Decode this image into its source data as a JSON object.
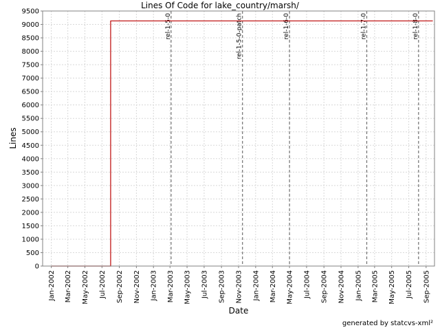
{
  "chart_data": {
    "type": "line",
    "title": "Lines Of Code for lake_country/marsh/",
    "xlabel": "Date",
    "ylabel": "Lines",
    "ylim": [
      0,
      9500
    ],
    "xlim": [
      "2001-12-01",
      "2005-10-01"
    ],
    "grid": true,
    "x_ticks": [
      "Jan-2002",
      "Mar-2002",
      "May-2002",
      "Jul-2002",
      "Sep-2002",
      "Nov-2002",
      "Jan-2003",
      "Mar-2003",
      "May-2003",
      "Jul-2003",
      "Sep-2003",
      "Nov-2003",
      "Jan-2004",
      "Mar-2004",
      "May-2004",
      "Jul-2004",
      "Sep-2004",
      "Nov-2004",
      "Jan-2005",
      "Mar-2005",
      "May-2005",
      "Jul-2005",
      "Sep-2005"
    ],
    "y_ticks": [
      0,
      500,
      1000,
      1500,
      2000,
      2500,
      3000,
      3500,
      4000,
      4500,
      5000,
      5500,
      6000,
      6500,
      7000,
      7500,
      8000,
      8500,
      9000,
      9500
    ],
    "series": [
      {
        "color": "#bb0000",
        "points": [
          {
            "x": "2002-01-01",
            "y": 0
          },
          {
            "x": "2002-08-01",
            "y": 0
          },
          {
            "x": "2002-08-01",
            "y": 9130
          },
          {
            "x": "2005-09-25",
            "y": 9130
          }
        ]
      }
    ],
    "markers": [
      {
        "label": "rel-1-5-0",
        "x": "2003-03-05"
      },
      {
        "label": "rel-1-5-0-patch",
        "x": "2003-11-15"
      },
      {
        "label": "rel-1-6-0",
        "x": "2004-05-01"
      },
      {
        "label": "rel-1-7-0",
        "x": "2005-02-01"
      },
      {
        "label": "rel-1-8-0",
        "x": "2005-08-05"
      }
    ]
  },
  "footer": {
    "credit": "generated by statcvs-xml²"
  }
}
